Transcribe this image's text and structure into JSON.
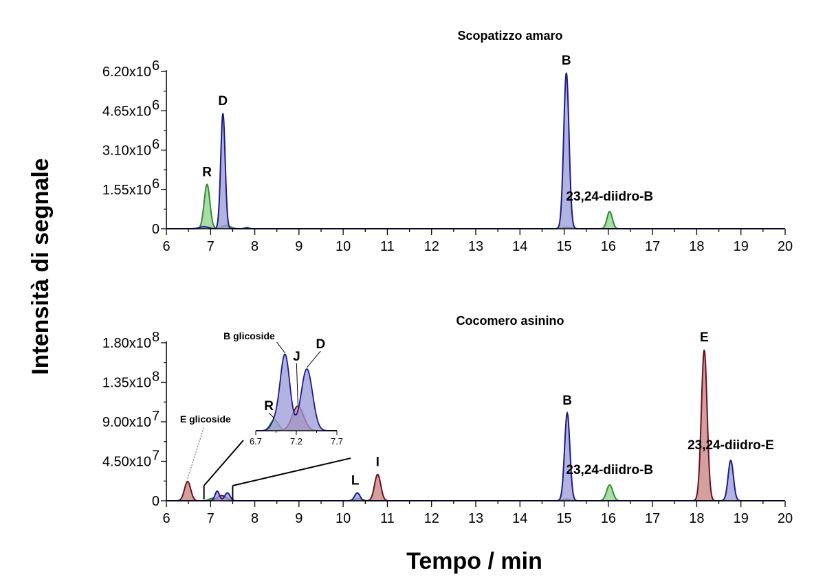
{
  "chart_data": [
    {
      "type": "area",
      "title": "Scopatizzo amaro",
      "x_range": [
        6,
        20
      ],
      "x_ticks": [
        "6",
        "7",
        "8",
        "9",
        "10",
        "11",
        "12",
        "13",
        "14",
        "15",
        "16",
        "17",
        "18",
        "19",
        "20"
      ],
      "y_range": [
        0,
        6200000.0
      ],
      "y_ticks": [
        {
          "value": 0,
          "label": "0"
        },
        {
          "value": 1550000.0,
          "mantissa": "1.55x10",
          "exp": "6"
        },
        {
          "value": 3100000.0,
          "mantissa": "3.10x10",
          "exp": "6"
        },
        {
          "value": 4650000.0,
          "mantissa": "4.65x10",
          "exp": "6"
        },
        {
          "value": 6200000.0,
          "mantissa": "6.20x10",
          "exp": "6"
        }
      ],
      "series": [
        {
          "color": "#2e8b2e",
          "fill": "#8fd18f",
          "peaks": [
            {
              "t": 6.92,
              "h": 1750000.0,
              "w": 0.065
            },
            {
              "t": 7.35,
              "h": 120000.0,
              "w": 0.1
            },
            {
              "t": 15.05,
              "h": 60000.0,
              "w": 0.1
            },
            {
              "t": 16.03,
              "h": 680000.0,
              "w": 0.06
            }
          ]
        },
        {
          "color": "#1a1a8c",
          "fill": "#9a9ad8",
          "peaks": [
            {
              "t": 6.85,
              "h": 80000.0,
              "w": 0.1
            },
            {
              "t": 7.28,
              "h": 4550000.0,
              "w": 0.05
            },
            {
              "t": 7.82,
              "h": 40000.0,
              "w": 0.05
            },
            {
              "t": 15.05,
              "h": 6150000.0,
              "w": 0.06
            }
          ]
        }
      ],
      "annotations": [
        {
          "text": "R",
          "t": 6.92,
          "v": 1750000.0
        },
        {
          "text": "D",
          "t": 7.28,
          "v": 4550000.0
        },
        {
          "text": "B",
          "t": 15.05,
          "v": 6150000.0
        },
        {
          "text": "23,24-diidro-B",
          "t": 16.03,
          "v": 680000.0
        }
      ]
    },
    {
      "type": "area",
      "title": "Cocomero asinino",
      "x_range": [
        6,
        20
      ],
      "x_ticks": [
        "6",
        "7",
        "8",
        "9",
        "10",
        "11",
        "12",
        "13",
        "14",
        "15",
        "16",
        "17",
        "18",
        "19",
        "20"
      ],
      "y_range": [
        0,
        180000000.0
      ],
      "y_ticks": [
        {
          "value": 0,
          "label": "0"
        },
        {
          "value": 45000000.0,
          "mantissa": "4.50x10",
          "exp": "7"
        },
        {
          "value": 90000000.0,
          "mantissa": "9.00x10",
          "exp": "7"
        },
        {
          "value": 135000000.0,
          "mantissa": "1.35x10",
          "exp": "8"
        },
        {
          "value": 180000000.0,
          "mantissa": "1.80x10",
          "exp": "8"
        }
      ],
      "series": [
        {
          "color": "#2e8b2e",
          "fill": "#8fd18f",
          "peaks": [
            {
              "t": 7.05,
              "h": 3000000.0,
              "w": 0.08
            },
            {
              "t": 10.35,
              "h": 2500000.0,
              "w": 0.08
            },
            {
              "t": 15.05,
              "h": 2000000.0,
              "w": 0.08
            },
            {
              "t": 16.03,
              "h": 18000000.0,
              "w": 0.07
            }
          ]
        },
        {
          "color": "#6e0f1a",
          "fill": "#c48080",
          "peaks": [
            {
              "t": 6.48,
              "h": 22000000.0,
              "w": 0.07
            },
            {
              "t": 7.25,
              "h": 6000000.0,
              "w": 0.1
            },
            {
              "t": 10.78,
              "h": 30000000.0,
              "w": 0.07
            },
            {
              "t": 18.17,
              "h": 172000000.0,
              "w": 0.065
            }
          ]
        },
        {
          "color": "#1a1a8c",
          "fill": "#9a9ad8",
          "peaks": [
            {
              "t": 7.15,
              "h": 11000000.0,
              "w": 0.05
            },
            {
              "t": 7.38,
              "h": 9000000.0,
              "w": 0.06
            },
            {
              "t": 10.32,
              "h": 9000000.0,
              "w": 0.06
            },
            {
              "t": 15.07,
              "h": 100000000.0,
              "w": 0.06
            },
            {
              "t": 18.77,
              "h": 46000000.0,
              "w": 0.06
            }
          ]
        }
      ],
      "annotations": [
        {
          "text": "E glicoside",
          "t": 6.48,
          "v": 22000000.0
        },
        {
          "text": "L",
          "t": 10.32,
          "v": 9000000.0
        },
        {
          "text": "I",
          "t": 10.78,
          "v": 30000000.0
        },
        {
          "text": "B",
          "t": 15.07,
          "v": 100000000.0
        },
        {
          "text": "23,24-diidro-B",
          "t": 16.03,
          "v": 18000000.0
        },
        {
          "text": "E",
          "t": 18.17,
          "v": 172000000.0
        },
        {
          "text": "23,24-diidro-E",
          "t": 18.77,
          "v": 46000000.0
        }
      ],
      "inset": {
        "x_range": [
          6.7,
          7.7
        ],
        "x_ticks": [
          "6.7",
          "7.2",
          "7.7"
        ],
        "zoom_from": [
          6.85,
          7.5
        ],
        "y_max": 12000000.0,
        "series": [
          {
            "color": "#2e8b2e",
            "fill": "#8fd18f",
            "peaks": [
              {
                "t": 6.93,
                "h": 1500000.0,
                "w": 0.05
              }
            ]
          },
          {
            "color": "#6e0f1a",
            "fill": "#c48080",
            "peaks": [
              {
                "t": 7.22,
                "h": 3400000.0,
                "w": 0.07
              }
            ]
          },
          {
            "color": "#1a1a8c",
            "fill": "#9a9ad8",
            "peaks": [
              {
                "t": 7.06,
                "h": 10500000.0,
                "w": 0.06
              },
              {
                "t": 7.33,
                "h": 8500000.0,
                "w": 0.07
              },
              {
                "t": 6.93,
                "h": 1000000.0,
                "w": 0.05
              }
            ]
          }
        ],
        "annotations": [
          {
            "text": "R",
            "t": 6.93,
            "v": 1500000.0
          },
          {
            "text": "B glicoside",
            "t": 7.06,
            "v": 10500000.0
          },
          {
            "text": "J",
            "t": 7.22,
            "v": 3400000.0
          },
          {
            "text": "D",
            "t": 7.33,
            "v": 8500000.0
          }
        ]
      }
    }
  ],
  "xlabel": "Tempo / min",
  "ylabel": "Intensità di segnale"
}
